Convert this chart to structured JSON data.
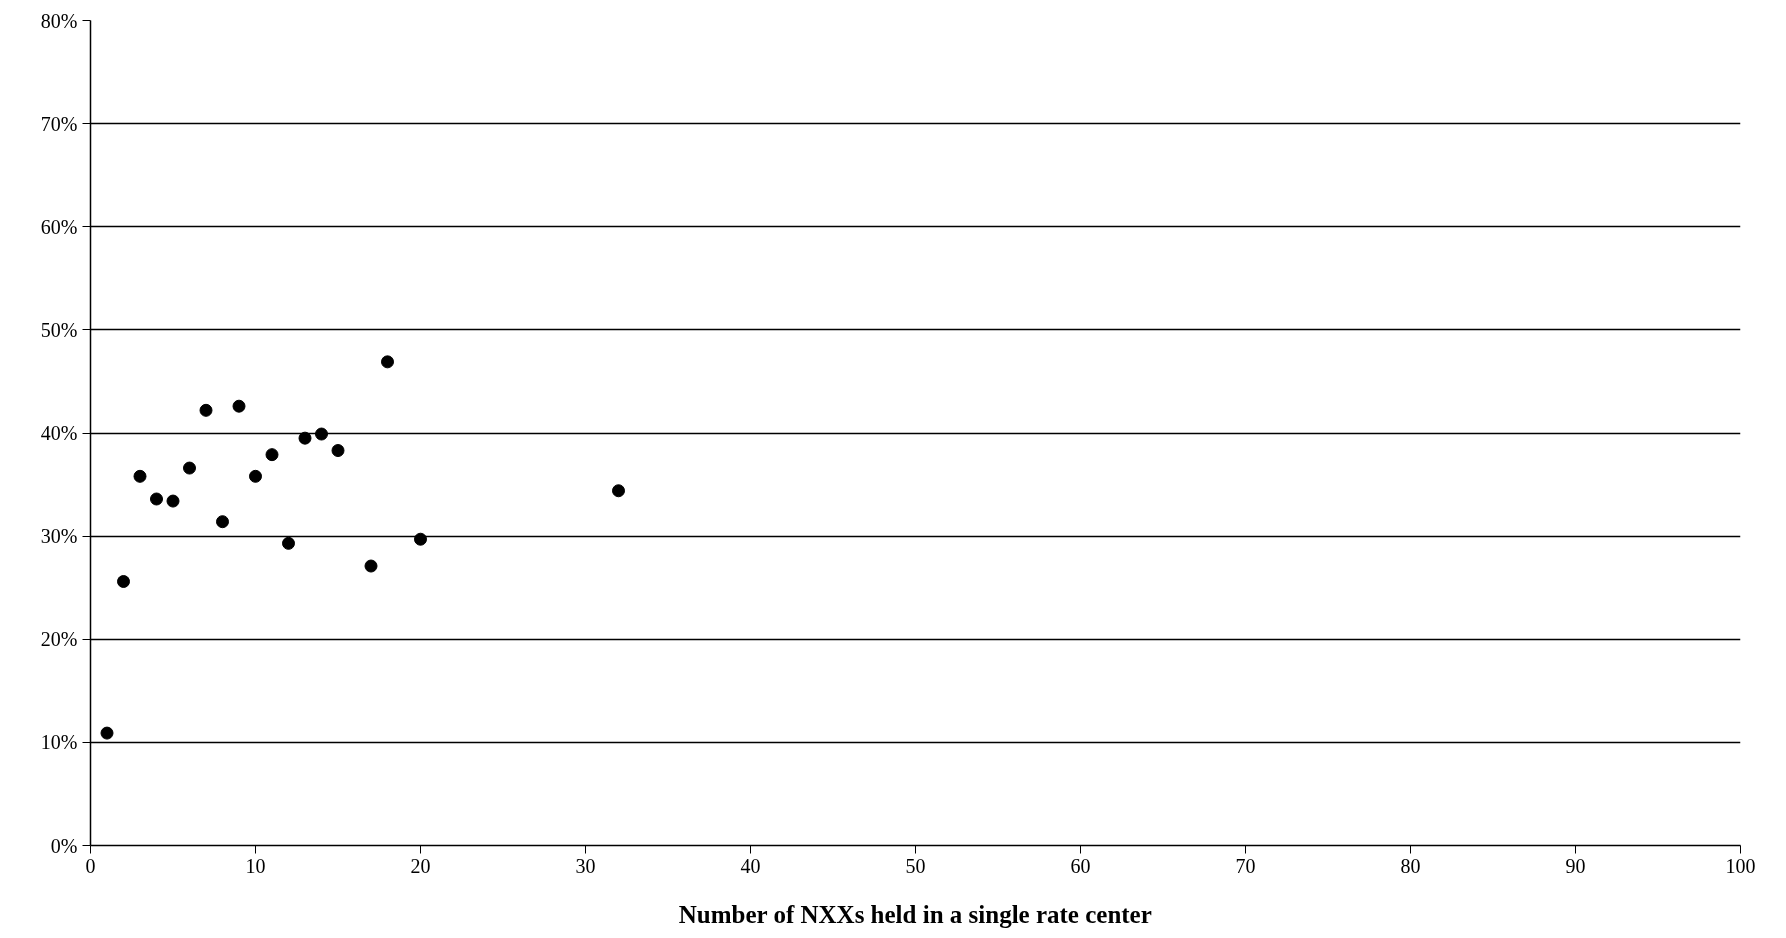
{
  "chart_data": {
    "type": "scatter",
    "xlabel": "Number of NXXs held in a single rate center",
    "x": [
      1,
      2,
      3,
      4,
      5,
      6,
      7,
      8,
      9,
      10,
      11,
      12,
      13,
      14,
      15,
      17,
      18,
      20,
      32
    ],
    "series": [
      {
        "color": "#000000",
        "values": [
          10.9,
          25.6,
          35.8,
          33.6,
          33.4,
          36.6,
          42.2,
          31.4,
          42.6,
          35.8,
          37.9,
          29.3,
          39.5,
          39.9,
          38.3,
          27.1,
          46.9,
          29.7,
          34.4
        ]
      }
    ],
    "xlim": [
      0,
      100
    ],
    "xticks": [
      0,
      10,
      20,
      30,
      40,
      50,
      60,
      70,
      80,
      90,
      100
    ],
    "ylim": [
      0,
      80
    ],
    "yticks": [
      {
        "value": 0,
        "label": "0%"
      },
      {
        "value": 10,
        "label": "10%"
      },
      {
        "value": 20,
        "label": "20%"
      },
      {
        "value": 30,
        "label": "30%"
      },
      {
        "value": 40,
        "label": "40%"
      },
      {
        "value": 50,
        "label": "50%"
      },
      {
        "value": 60,
        "label": "60%"
      },
      {
        "value": 70,
        "label": "70%"
      },
      {
        "value": 80,
        "label": "80%"
      }
    ],
    "grid": "y",
    "marker": "circle"
  }
}
